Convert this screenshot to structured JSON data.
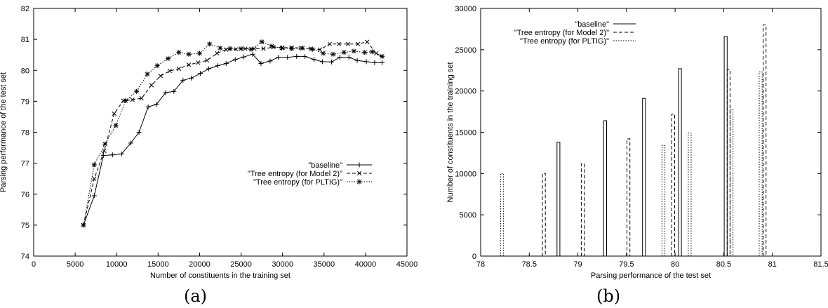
{
  "captions": {
    "a": "(a)",
    "b": "(b)"
  },
  "chart_data": [
    {
      "type": "line",
      "xlabel": "Number of constituents in the training set",
      "ylabel": "Parsing performance of the test set",
      "xlim": [
        0,
        45000
      ],
      "ylim": [
        74,
        82
      ],
      "xticks": [
        0,
        5000,
        10000,
        15000,
        20000,
        25000,
        30000,
        35000,
        40000,
        45000
      ],
      "yticks": [
        74,
        75,
        76,
        77,
        78,
        79,
        80,
        81,
        82
      ],
      "legend_position": "center-right",
      "series": [
        {
          "name": "\"baseline\"",
          "marker": "plus",
          "dash": "solid",
          "x": [
            6000,
            7300,
            8400,
            9500,
            10600,
            11700,
            12700,
            13800,
            14800,
            15900,
            16900,
            18000,
            19000,
            20100,
            21100,
            22200,
            23200,
            24300,
            25300,
            26400,
            27400,
            28500,
            29500,
            30600,
            31700,
            32700,
            33800,
            34800,
            35900,
            36900,
            38000,
            39000,
            40100,
            41100,
            42000
          ],
          "y": [
            75.0,
            75.95,
            77.25,
            77.27,
            77.3,
            77.65,
            78.0,
            78.82,
            78.9,
            79.28,
            79.32,
            79.68,
            79.75,
            79.9,
            80.05,
            80.15,
            80.22,
            80.35,
            80.43,
            80.52,
            80.22,
            80.3,
            80.42,
            80.42,
            80.45,
            80.45,
            80.35,
            80.28,
            80.27,
            80.42,
            80.42,
            80.32,
            80.28,
            80.25,
            80.25
          ]
        },
        {
          "name": "\"Tree entropy (for Model 2)\"",
          "marker": "cross",
          "dash": "dashed",
          "x": [
            6000,
            7300,
            8500,
            9700,
            10800,
            11900,
            13000,
            14200,
            15300,
            16400,
            17500,
            18700,
            19800,
            20900,
            22100,
            23200,
            24400,
            25500,
            26600,
            27700,
            28900,
            30000,
            31100,
            32200,
            33400,
            34500,
            35700,
            36800,
            37900,
            39100,
            40200,
            41300,
            42000
          ],
          "y": [
            75.0,
            76.5,
            77.4,
            78.6,
            79.02,
            79.05,
            79.1,
            79.52,
            79.82,
            79.98,
            80.05,
            80.18,
            80.25,
            80.32,
            80.55,
            80.67,
            80.68,
            80.7,
            80.7,
            80.7,
            80.75,
            80.73,
            80.74,
            80.72,
            80.7,
            80.67,
            80.85,
            80.85,
            80.85,
            80.85,
            80.92,
            80.55,
            80.45
          ]
        },
        {
          "name": "\"Tree entropy (for PLTIG)\"",
          "marker": "star",
          "dash": "dotted",
          "x": [
            6000,
            7300,
            8600,
            9900,
            11100,
            12400,
            13700,
            14900,
            16200,
            17500,
            18700,
            20000,
            21200,
            22500,
            23700,
            25000,
            26200,
            27500,
            28700,
            29900,
            31100,
            32400,
            33600,
            34900,
            36100,
            37400,
            38600,
            39900,
            40800,
            42000
          ],
          "y": [
            75.0,
            76.95,
            77.62,
            78.22,
            79.02,
            79.32,
            79.88,
            80.15,
            80.38,
            80.58,
            80.52,
            80.55,
            80.85,
            80.72,
            80.7,
            80.7,
            80.68,
            80.92,
            80.78,
            80.72,
            80.7,
            80.72,
            80.68,
            80.55,
            80.52,
            80.58,
            80.62,
            80.58,
            80.6,
            80.45
          ]
        }
      ]
    },
    {
      "type": "bar",
      "xlabel": "Parsing performance of the test set",
      "ylabel": "Number of constituents in the training set",
      "xlim": [
        78,
        81.5
      ],
      "ylim": [
        0,
        30000
      ],
      "xticks": [
        78,
        78.5,
        79,
        79.5,
        80,
        80.5,
        81,
        81.5
      ],
      "yticks": [
        0,
        5000,
        10000,
        15000,
        20000,
        25000,
        30000
      ],
      "legend_position": "top-left",
      "bar_width": 0.03,
      "series": [
        {
          "name": "\"baseline\"",
          "dash": "solid",
          "x": [
            78.8,
            79.28,
            79.68,
            80.05,
            80.52
          ],
          "y": [
            13800,
            16400,
            19100,
            22700,
            26600
          ]
        },
        {
          "name": "\"Tree entropy (for Model 2)\"",
          "dash": "dashed",
          "x": [
            78.65,
            79.05,
            79.52,
            79.98,
            80.55,
            80.92
          ],
          "y": [
            10000,
            11200,
            14200,
            17200,
            22600,
            28000
          ]
        },
        {
          "name": "\"Tree entropy (for PLTIG)\"",
          "dash": "dotted",
          "x": [
            78.22,
            79.88,
            80.15,
            80.58,
            80.88
          ],
          "y": [
            10000,
            13400,
            14900,
            17800,
            22300
          ]
        }
      ]
    }
  ]
}
